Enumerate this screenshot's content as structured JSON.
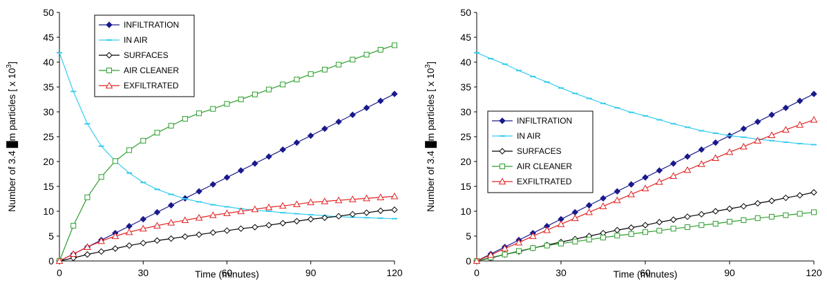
{
  "chart_data": [
    {
      "type": "line",
      "title": "",
      "xlabel": "Time (minutes)",
      "ylabel": "Number of 3.4 █m particles [ x 10",
      "ylabel_sup": "3",
      "ylabel_end": "]",
      "xlim": [
        0,
        120
      ],
      "ylim": [
        0,
        50
      ],
      "xticks": [
        "0",
        "30",
        "60",
        "90",
        "120"
      ],
      "yticks": [
        "0",
        "5",
        "10",
        "15",
        "20",
        "25",
        "30",
        "35",
        "40",
        "45",
        "50"
      ],
      "grid": false,
      "legend_position": "top-center",
      "x": [
        0,
        5,
        10,
        15,
        20,
        25,
        30,
        35,
        40,
        45,
        50,
        55,
        60,
        65,
        70,
        75,
        80,
        85,
        90,
        95,
        100,
        105,
        110,
        115,
        120
      ],
      "series": [
        {
          "name": "INFILTRATION",
          "color": "#1a1a8c",
          "marker": "diamond-filled",
          "values": [
            0,
            1.4,
            2.8,
            4.2,
            5.6,
            7.0,
            8.4,
            9.8,
            11.2,
            12.6,
            14.0,
            15.4,
            16.8,
            18.2,
            19.6,
            21.0,
            22.4,
            23.8,
            25.2,
            26.6,
            28.0,
            29.4,
            30.8,
            32.2,
            33.6
          ]
        },
        {
          "name": "IN AIR",
          "color": "#33ccee",
          "marker": "dash",
          "values": [
            41.9,
            34.1,
            27.6,
            23.1,
            20.1,
            17.7,
            15.8,
            14.4,
            13.4,
            12.5,
            11.9,
            11.3,
            10.9,
            10.5,
            10.2,
            10.0,
            9.7,
            9.5,
            9.3,
            9.1,
            8.9,
            8.8,
            8.7,
            8.6,
            8.5
          ]
        },
        {
          "name": "SURFACES",
          "color": "#000000",
          "marker": "diamond-open",
          "values": [
            0,
            0.6,
            1.3,
            1.9,
            2.5,
            3.1,
            3.6,
            4.1,
            4.5,
            4.9,
            5.3,
            5.7,
            6.1,
            6.5,
            6.8,
            7.2,
            7.6,
            8.0,
            8.4,
            8.7,
            9.0,
            9.4,
            9.7,
            10.1,
            10.3
          ]
        },
        {
          "name": "AIR CLEANER",
          "color": "#2a9d2a",
          "marker": "square-open",
          "values": [
            0,
            7.1,
            12.8,
            16.9,
            20.1,
            22.3,
            24.2,
            25.8,
            27.2,
            28.6,
            29.7,
            30.6,
            31.6,
            32.5,
            33.5,
            34.5,
            35.5,
            36.5,
            37.6,
            38.5,
            39.5,
            40.5,
            41.5,
            42.5,
            43.4
          ]
        },
        {
          "name": "EXFILTRATED",
          "color": "#e02020",
          "marker": "triangle-open",
          "values": [
            0,
            1.4,
            2.8,
            4.0,
            5.0,
            5.8,
            6.5,
            7.1,
            7.7,
            8.2,
            8.7,
            9.2,
            9.6,
            10.0,
            10.4,
            10.8,
            11.1,
            11.4,
            11.8,
            12.0,
            12.2,
            12.4,
            12.6,
            12.8,
            13.0
          ]
        }
      ]
    },
    {
      "type": "line",
      "title": "",
      "xlabel": "Time (minutes)",
      "ylabel": "Number of 3.4 █m particles [ x 10",
      "ylabel_sup": "3",
      "ylabel_end": "]",
      "xlim": [
        0,
        120
      ],
      "ylim": [
        0,
        50
      ],
      "xticks": [
        "0",
        "30",
        "60",
        "90",
        "120"
      ],
      "yticks": [
        "0",
        "5",
        "10",
        "15",
        "20",
        "25",
        "30",
        "35",
        "40",
        "45",
        "50"
      ],
      "grid": false,
      "legend_position": "center-left",
      "x": [
        0,
        5,
        10,
        15,
        20,
        25,
        30,
        35,
        40,
        45,
        50,
        55,
        60,
        65,
        70,
        75,
        80,
        85,
        90,
        95,
        100,
        105,
        110,
        115,
        120
      ],
      "series": [
        {
          "name": "INFILTRATION",
          "color": "#1a1a8c",
          "marker": "diamond-filled",
          "values": [
            0,
            1.4,
            2.8,
            4.2,
            5.6,
            7.0,
            8.4,
            9.8,
            11.2,
            12.6,
            14.0,
            15.4,
            16.8,
            18.2,
            19.6,
            21.0,
            22.4,
            23.8,
            25.2,
            26.6,
            28.0,
            29.4,
            30.8,
            32.2,
            33.6
          ]
        },
        {
          "name": "IN AIR",
          "color": "#33ccee",
          "marker": "dash",
          "values": [
            41.9,
            40.7,
            39.6,
            38.3,
            37.1,
            36.0,
            34.8,
            33.7,
            32.7,
            31.7,
            30.8,
            29.9,
            29.2,
            28.4,
            27.6,
            26.9,
            26.2,
            25.7,
            25.2,
            24.9,
            24.5,
            24.2,
            23.9,
            23.6,
            23.4
          ]
        },
        {
          "name": "SURFACES",
          "color": "#000000",
          "marker": "diamond-open",
          "values": [
            0,
            0.6,
            1.3,
            1.9,
            2.6,
            3.2,
            3.8,
            4.4,
            5.0,
            5.6,
            6.2,
            6.7,
            7.2,
            7.8,
            8.3,
            8.9,
            9.4,
            10.0,
            10.5,
            11.0,
            11.6,
            12.1,
            12.7,
            13.2,
            13.8
          ]
        },
        {
          "name": "AIR CLEANER",
          "color": "#2a9d2a",
          "marker": "square-open",
          "values": [
            0,
            0.7,
            1.3,
            2.0,
            2.6,
            3.1,
            3.5,
            3.9,
            4.3,
            4.7,
            5.1,
            5.4,
            5.8,
            6.1,
            6.5,
            6.8,
            7.2,
            7.5,
            7.9,
            8.2,
            8.6,
            8.9,
            9.2,
            9.5,
            9.8
          ]
        },
        {
          "name": "EXFILTRATED",
          "color": "#e02020",
          "marker": "triangle-open",
          "values": [
            0,
            1.2,
            2.5,
            3.7,
            5.0,
            6.2,
            7.4,
            8.6,
            9.8,
            11.0,
            12.2,
            13.4,
            14.6,
            15.9,
            17.1,
            18.3,
            19.5,
            20.7,
            21.9,
            23.0,
            24.2,
            25.3,
            26.4,
            27.4,
            28.4
          ]
        }
      ]
    }
  ]
}
